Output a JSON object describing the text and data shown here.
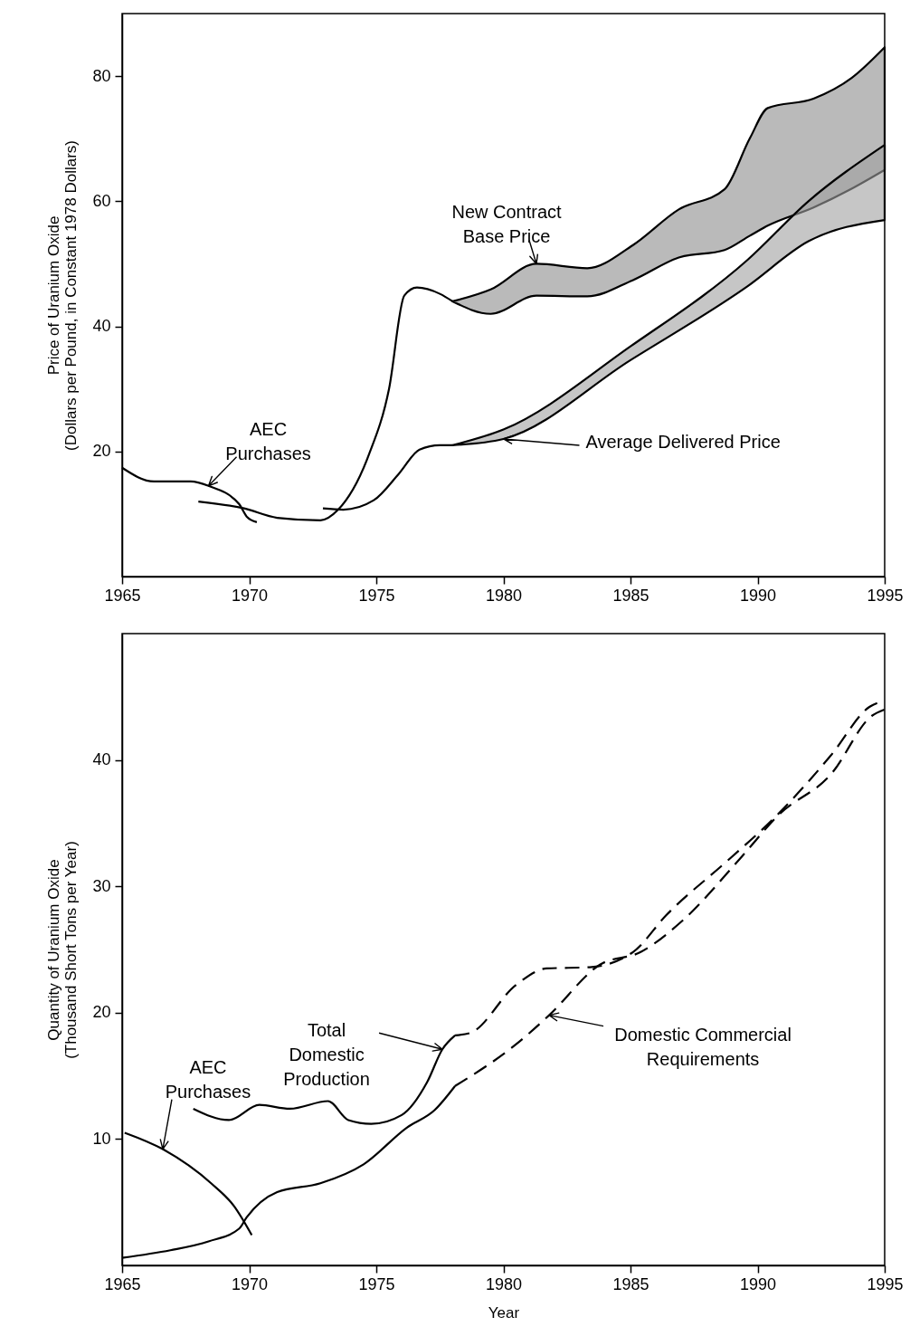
{
  "chart_data": [
    {
      "type": "line",
      "ylabel": "Price of Uranium Oxide\n(Dollars per Pound, in Constant 1978 Dollars)",
      "xlim": [
        1965,
        1995
      ],
      "xticks": [
        1965,
        1970,
        1975,
        1980,
        1985,
        1990,
        1995
      ],
      "ylim": [
        0,
        90
      ],
      "yticks": [
        20,
        40,
        60,
        80
      ],
      "grid": false,
      "series": [
        {
          "name": "AEC Purchases",
          "color": "#000000",
          "x": [
            1965,
            1966.25,
            1967.7,
            1968.4,
            1969.6,
            1969.9,
            1970.3
          ],
          "values": [
            17.4,
            15.2,
            15.2,
            14.5,
            11.6,
            9.6,
            8.7
          ]
        },
        {
          "name": "New Contract Base Price",
          "color": "#000000",
          "x": [
            1968,
            1969.8,
            1971.1,
            1972.8,
            1973.5,
            1974.7,
            1975.5,
            1976.1,
            1976.6,
            1977.5,
            1978,
            1979.5,
            1981.3,
            1983.3,
            1985.1,
            1986.9,
            1988.7,
            1989.7,
            1990.4,
            1992.2,
            1993.7,
            1995
          ],
          "values": [
            12,
            10.9,
            9.4,
            9,
            10.7,
            19.4,
            30,
            44.9,
            46.2,
            45.2,
            44,
            null,
            null,
            null,
            null,
            null,
            null,
            null,
            null,
            null,
            null,
            null
          ],
          "lower": [
            null,
            null,
            null,
            null,
            null,
            null,
            null,
            null,
            null,
            null,
            44,
            42,
            44.9,
            44.8,
            47.4,
            51,
            52.2,
            54.5,
            56.1,
            59,
            62,
            65
          ],
          "upper": [
            null,
            null,
            null,
            null,
            null,
            null,
            null,
            null,
            null,
            null,
            44,
            45.9,
            50,
            49.3,
            53,
            58.7,
            61.9,
            70.1,
            74.9,
            76.4,
            79.7,
            84.6
          ]
        },
        {
          "name": "Average Delivered Price",
          "color": "#000000",
          "x": [
            1972.9,
            1973.7,
            1974.9,
            1975.9,
            1976.7,
            1977.5,
            1978,
            1980,
            1985,
            1989.6,
            1992,
            1995
          ],
          "values": [
            10.9,
            10.7,
            12.2,
            16.5,
            20.3,
            21,
            21,
            null,
            null,
            null,
            null,
            null
          ],
          "lower": [
            null,
            null,
            null,
            null,
            null,
            null,
            21,
            22,
            34.6,
            46.4,
            53.6,
            57
          ],
          "upper": [
            null,
            null,
            null,
            null,
            null,
            null,
            21,
            23.5,
            36.8,
            50.6,
            60,
            69
          ]
        }
      ]
    },
    {
      "type": "line",
      "xlabel": "Year",
      "ylabel": "Quantity of Uranium Oxide\n(Thousand Short Tons per Year)",
      "xlim": [
        1965,
        1995
      ],
      "xticks": [
        1965,
        1970,
        1975,
        1980,
        1985,
        1990,
        1995
      ],
      "ylim": [
        0,
        50
      ],
      "yticks": [
        10,
        20,
        30,
        40
      ],
      "grid": false,
      "series": [
        {
          "name": "AEC Purchases",
          "color": "#000000",
          "x": [
            1965.1,
            1966.6,
            1968.5,
            1969.4,
            1970.1
          ],
          "values": [
            10.5,
            9.2,
            6.5,
            4.7,
            2.4
          ]
        },
        {
          "name": "Total Domestic Production",
          "color": "#000000",
          "x": [
            1967.8,
            1969.2,
            1970.4,
            1971.6,
            1973.1,
            1973.9,
            1974.8,
            1976,
            1977,
            1977.6,
            1978.1
          ],
          "values": [
            12.4,
            11.5,
            12.7,
            12.4,
            13,
            11.5,
            11.2,
            11.9,
            14.5,
            17.1,
            18.2
          ]
        },
        {
          "color": "#000000",
          "line_style": "dashed",
          "x": [
            1978.1,
            1978.7,
            1980.5,
            1981.7,
            1983.4,
            1985.1,
            1986.4,
            1988.8,
            1990.6,
            1992.9,
            1994.4,
            1995
          ],
          "values": [
            18.2,
            18.4,
            22.2,
            23.5,
            23.6,
            24.8,
            27.7,
            32,
            35.3,
            40.4,
            44.2,
            44.7
          ]
        },
        {
          "color": "#000000",
          "x": [
            1965,
            1966.9,
            1968.4,
            1969.6,
            1969.9,
            1971.1,
            1972.8,
            1974.5,
            1976.2,
            1977.3,
            1978.1
          ],
          "values": [
            0.6,
            1.2,
            1.9,
            2.9,
            3.8,
            5.8,
            6.5,
            8,
            10.9,
            12.3,
            14.2
          ]
        },
        {
          "name": "Domestic Commercial Requirements",
          "color": "#000000",
          "line_style": "dashed",
          "x": [
            1978.1,
            1980.5,
            1981.8,
            1983.8,
            1985.4,
            1987,
            1989.4,
            1990.8,
            1992.9,
            1994.5,
            1995
          ],
          "values": [
            14.2,
            17.5,
            19.8,
            23.8,
            24.8,
            27.2,
            32.4,
            35.6,
            38.9,
            43.5,
            44
          ]
        }
      ]
    }
  ]
}
